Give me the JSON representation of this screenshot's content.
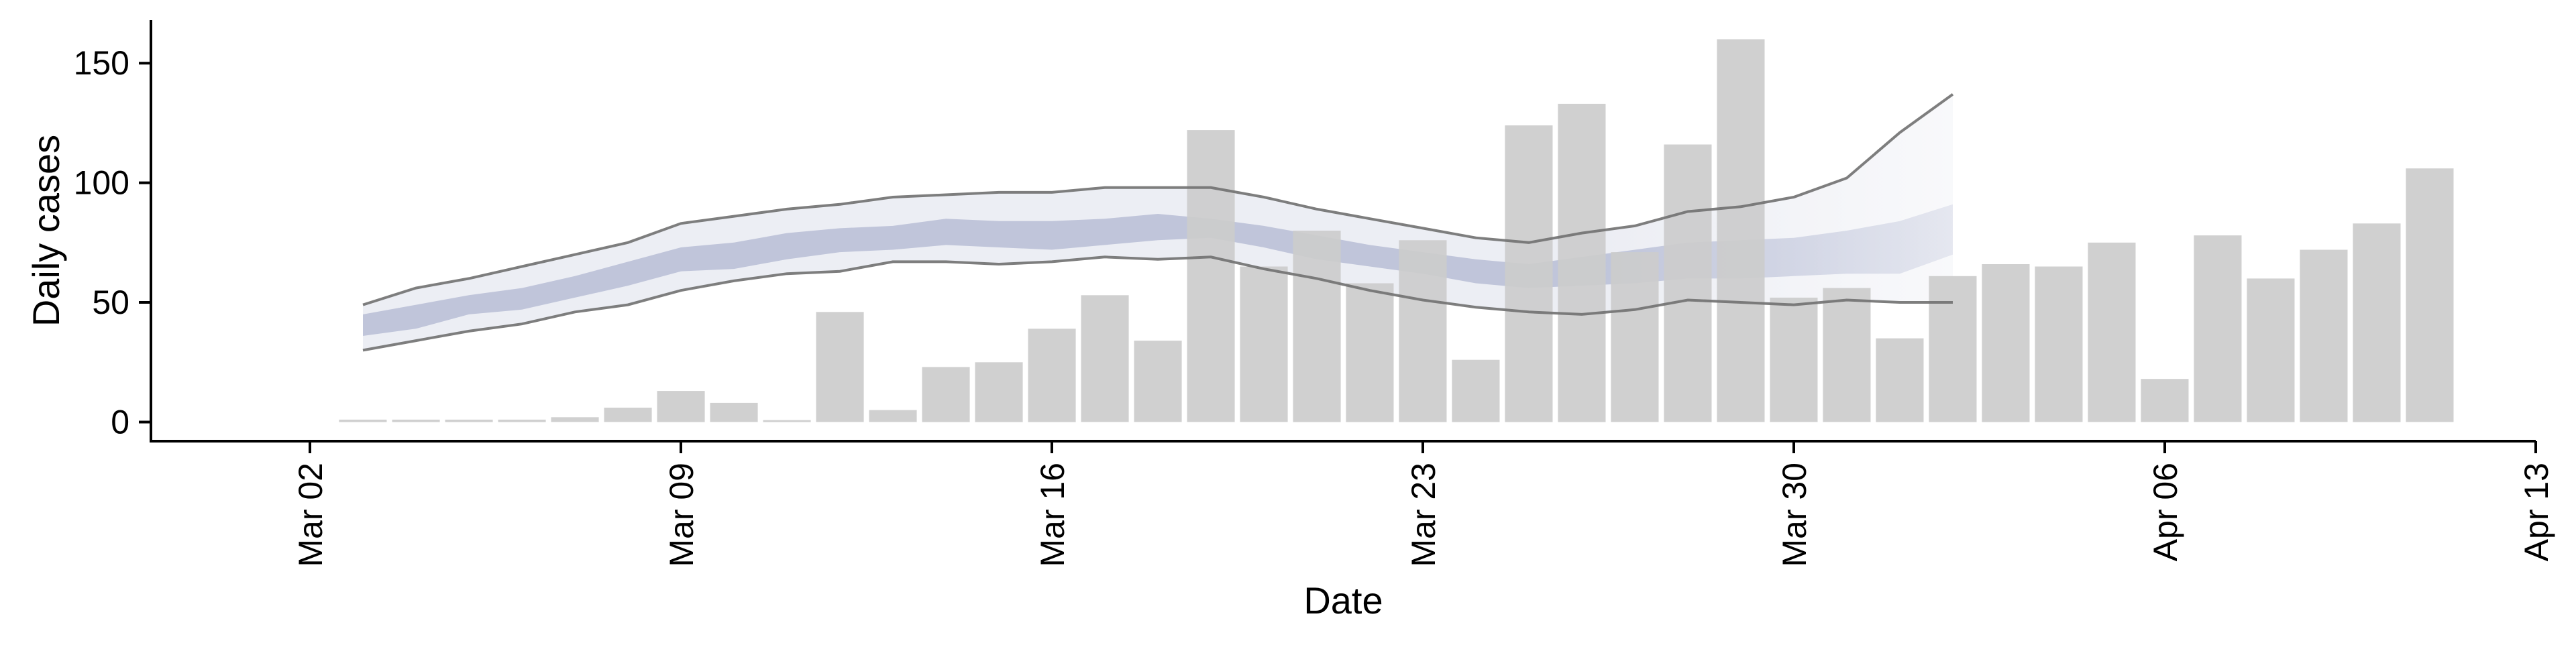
{
  "chart_data": {
    "type": "bar",
    "xlabel": "Date",
    "ylabel": "Daily cases",
    "x_ticks": [
      "2020-03-02",
      "2020-03-09",
      "2020-03-16",
      "2020-03-23",
      "2020-03-30",
      "2020-04-06",
      "2020-04-13"
    ],
    "x_tick_labels": [
      "Mar 02",
      "Mar 09",
      "Mar 16",
      "Mar 23",
      "Mar 30",
      "Apr 06",
      "Apr 13"
    ],
    "y_ticks": [
      0,
      50,
      100,
      150
    ],
    "y_tick_labels": [
      "0",
      "50",
      "100",
      "150"
    ],
    "xlim": [
      "2020-02-28",
      "2020-04-13"
    ],
    "ylim": [
      -8,
      168
    ],
    "grid": false,
    "legend": "none",
    "colors": {
      "bars": "#cccccc",
      "band_outer": "#e6e8f0",
      "band_inner": "#b8bed6",
      "line": "#707070",
      "axis": "#000000"
    },
    "bars": {
      "dates": [
        "2020-03-03",
        "2020-03-04",
        "2020-03-05",
        "2020-03-06",
        "2020-03-07",
        "2020-03-08",
        "2020-03-09",
        "2020-03-10",
        "2020-03-11",
        "2020-03-12",
        "2020-03-13",
        "2020-03-14",
        "2020-03-15",
        "2020-03-16",
        "2020-03-17",
        "2020-03-18",
        "2020-03-19",
        "2020-03-20",
        "2020-03-21",
        "2020-03-22",
        "2020-03-23",
        "2020-03-24",
        "2020-03-25",
        "2020-03-26",
        "2020-03-27",
        "2020-03-28",
        "2020-03-29",
        "2020-03-30",
        "2020-03-31",
        "2020-04-01",
        "2020-04-02",
        "2020-04-03",
        "2020-04-04",
        "2020-04-05",
        "2020-04-06",
        "2020-04-07",
        "2020-04-08",
        "2020-04-09",
        "2020-04-10",
        "2020-04-11"
      ],
      "values": [
        1,
        1,
        1,
        1,
        2,
        6,
        13,
        8,
        0,
        46,
        5,
        23,
        25,
        39,
        53,
        34,
        122,
        65,
        80,
        58,
        76,
        26,
        124,
        133,
        71,
        116,
        160,
        52,
        56,
        35,
        61,
        66,
        65,
        75,
        18,
        78,
        60,
        72,
        83,
        106
      ]
    },
    "estimate": {
      "dates": [
        "2020-03-03",
        "2020-03-04",
        "2020-03-05",
        "2020-03-06",
        "2020-03-07",
        "2020-03-08",
        "2020-03-09",
        "2020-03-10",
        "2020-03-11",
        "2020-03-12",
        "2020-03-13",
        "2020-03-14",
        "2020-03-15",
        "2020-03-16",
        "2020-03-17",
        "2020-03-18",
        "2020-03-19",
        "2020-03-20",
        "2020-03-21",
        "2020-03-22",
        "2020-03-23",
        "2020-03-24",
        "2020-03-25",
        "2020-03-26",
        "2020-03-27",
        "2020-03-28",
        "2020-03-29",
        "2020-03-30",
        "2020-03-31",
        "2020-04-01",
        "2020-04-02"
      ],
      "upper_outer": [
        49,
        56,
        60,
        65,
        70,
        75,
        83,
        86,
        89,
        91,
        94,
        95,
        96,
        96,
        98,
        98,
        98,
        94,
        89,
        85,
        81,
        77,
        75,
        79,
        82,
        88,
        90,
        94,
        102,
        121,
        137
      ],
      "upper_inner": [
        45,
        49,
        53,
        56,
        61,
        67,
        73,
        75,
        79,
        81,
        82,
        85,
        84,
        84,
        85,
        87,
        85,
        82,
        78,
        74,
        71,
        68,
        66,
        69,
        72,
        75,
        76,
        77,
        80,
        84,
        91
      ],
      "lower_inner": [
        36,
        39,
        45,
        47,
        52,
        57,
        63,
        64,
        68,
        71,
        72,
        74,
        73,
        72,
        74,
        76,
        77,
        73,
        68,
        65,
        62,
        58,
        56,
        57,
        58,
        60,
        60,
        61,
        62,
        62,
        70
      ],
      "lower_outer": [
        30,
        34,
        38,
        41,
        46,
        49,
        55,
        59,
        62,
        63,
        67,
        67,
        66,
        67,
        69,
        68,
        69,
        64,
        60,
        55,
        51,
        48,
        46,
        45,
        47,
        51,
        50,
        49,
        51,
        50,
        50
      ]
    }
  }
}
